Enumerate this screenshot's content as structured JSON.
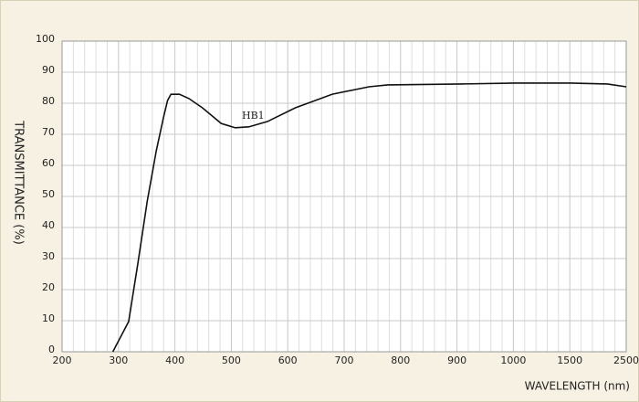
{
  "chart_data": {
    "type": "line",
    "x_label": "WAVELENGTH (nm)",
    "y_label": "TRANSMITTANCE  (%)",
    "xlim": [
      200,
      2500
    ],
    "xticks": [
      200,
      300,
      400,
      500,
      600,
      700,
      800,
      900,
      1000,
      1500,
      2500
    ],
    "ylim": [
      0,
      100
    ],
    "yticks": [
      0,
      10,
      20,
      30,
      40,
      50,
      60,
      70,
      80,
      90,
      100
    ],
    "grid": true,
    "annotation": "HB1",
    "series": [
      {
        "name": "HB1",
        "color": "#111111",
        "x": [
          290,
          318,
          334,
          351,
          367,
          380,
          387,
          393,
          408,
          425,
          449,
          482,
          507,
          531,
          564,
          613,
          679,
          744,
          777,
          908,
          1016,
          1500,
          2167,
          2500
        ],
        "values": [
          0,
          9.7,
          28,
          48.5,
          64.7,
          75.6,
          80.9,
          82.9,
          82.9,
          81.5,
          78.5,
          73.5,
          72.1,
          72.4,
          74.1,
          78.5,
          82.9,
          85.3,
          85.9,
          86.2,
          86.5,
          86.5,
          86.2,
          85.3
        ]
      }
    ]
  }
}
